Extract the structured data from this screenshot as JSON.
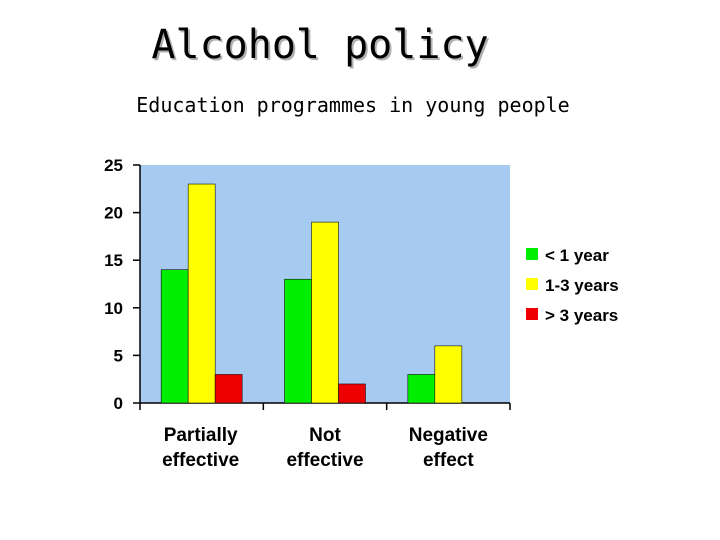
{
  "slide": {
    "title": "Alcohol policy",
    "subtitle": "Education programmes in young people"
  },
  "chart_data": {
    "type": "bar",
    "title": "",
    "xlabel": "",
    "ylabel": "",
    "categories": [
      [
        "Partially",
        "effective"
      ],
      [
        "Not",
        "effective"
      ],
      [
        "Negative",
        "effect"
      ]
    ],
    "series": [
      {
        "name": "< 1 year",
        "values": [
          14,
          13,
          3
        ],
        "color": "#00ee00"
      },
      {
        "name": "1-3 years",
        "values": [
          23,
          19,
          6
        ],
        "color": "#ffff00"
      },
      {
        "name": "> 3 years",
        "values": [
          3,
          2,
          0
        ],
        "color": "#ee0000"
      }
    ],
    "ylim": [
      0,
      25
    ],
    "yticks": [
      0,
      5,
      10,
      15,
      20,
      25
    ],
    "plot_background": "#a6caf0",
    "grid": false,
    "legend": "right"
  }
}
